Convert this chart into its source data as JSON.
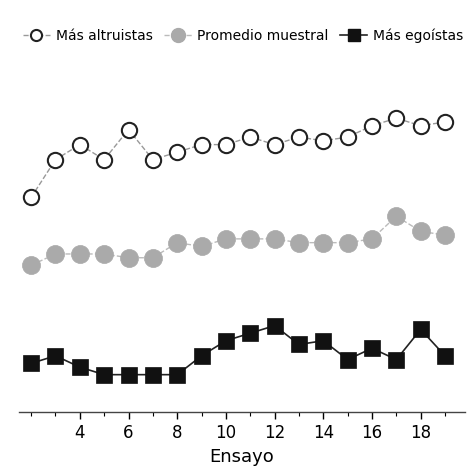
{
  "title": "",
  "xlabel": "Ensayo",
  "x": [
    2,
    3,
    4,
    5,
    6,
    7,
    8,
    9,
    10,
    11,
    12,
    13,
    14,
    15,
    16,
    17,
    18,
    19
  ],
  "line1_y": [
    0.62,
    0.72,
    0.76,
    0.72,
    0.8,
    0.72,
    0.74,
    0.76,
    0.76,
    0.78,
    0.76,
    0.78,
    0.77,
    0.78,
    0.81,
    0.83,
    0.81,
    0.82
  ],
  "line2_y": [
    0.44,
    0.47,
    0.47,
    0.47,
    0.46,
    0.46,
    0.5,
    0.49,
    0.51,
    0.51,
    0.51,
    0.5,
    0.5,
    0.5,
    0.51,
    0.57,
    0.53,
    0.52
  ],
  "line3_y": [
    0.18,
    0.2,
    0.17,
    0.15,
    0.15,
    0.15,
    0.15,
    0.2,
    0.24,
    0.26,
    0.28,
    0.23,
    0.24,
    0.19,
    0.22,
    0.19,
    0.27,
    0.2
  ],
  "line1_color": "#999999",
  "line2_color": "#aaaaaa",
  "line3_color": "#111111",
  "legend_labels": [
    "Más altruistas",
    "Promedio muestral",
    "Más egoístas"
  ],
  "xticks": [
    4,
    6,
    8,
    10,
    12,
    14,
    16,
    18
  ],
  "minor_xticks": [
    2,
    3,
    4,
    5,
    6,
    7,
    8,
    9,
    10,
    11,
    12,
    13,
    14,
    15,
    16,
    17,
    18,
    19
  ],
  "xlim": [
    1.5,
    19.8
  ],
  "ylim": [
    0.05,
    0.98
  ],
  "figsize": [
    4.74,
    4.74
  ],
  "dpi": 100
}
